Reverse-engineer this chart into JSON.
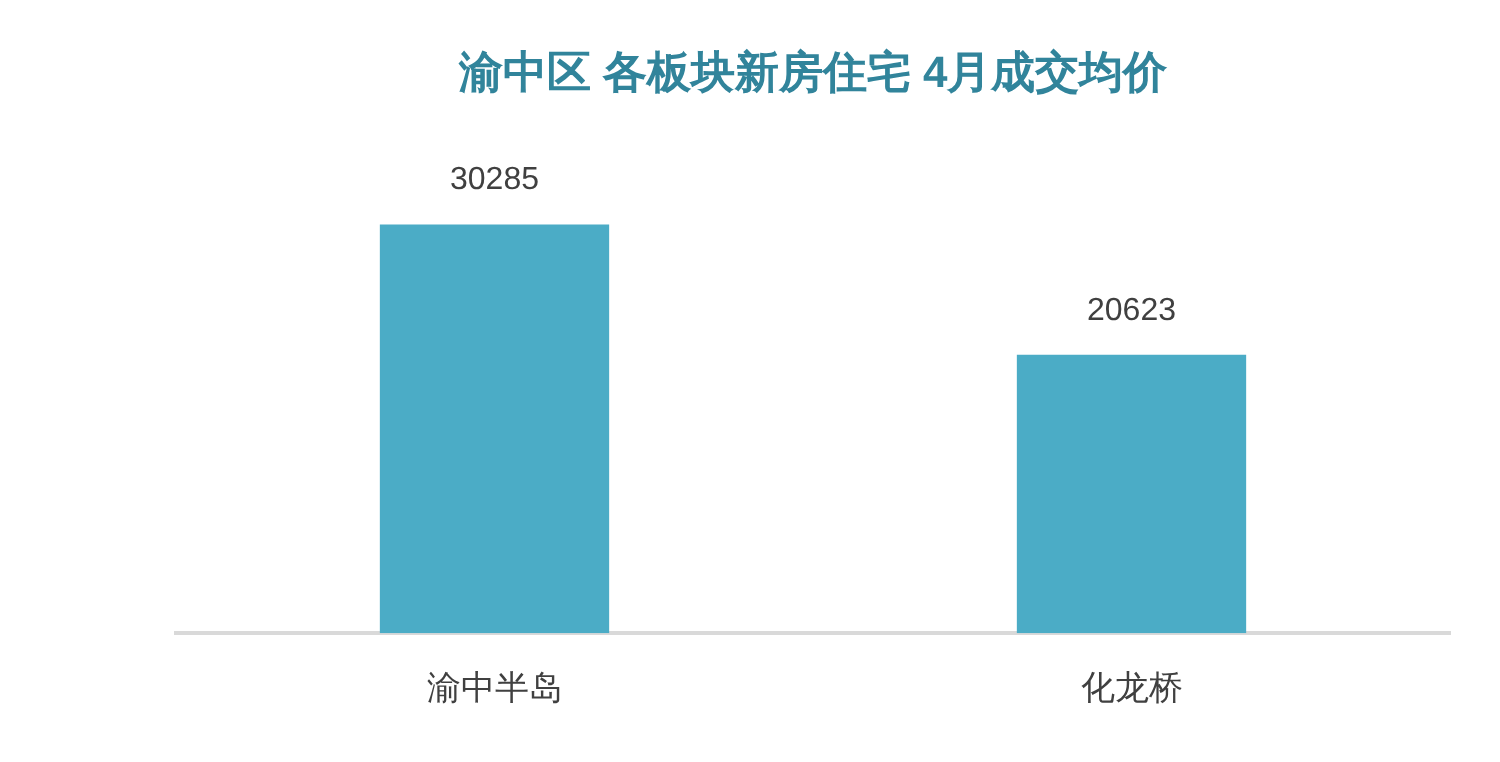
{
  "chart_data": {
    "type": "bar",
    "title": "渝中区 各板块新房住宅 4月成交均价",
    "categories": [
      "渝中半岛",
      "化龙桥"
    ],
    "values": [
      30285,
      20623
    ],
    "color": "#4bacc6",
    "data_labels": true,
    "grid": false,
    "legend": false
  }
}
